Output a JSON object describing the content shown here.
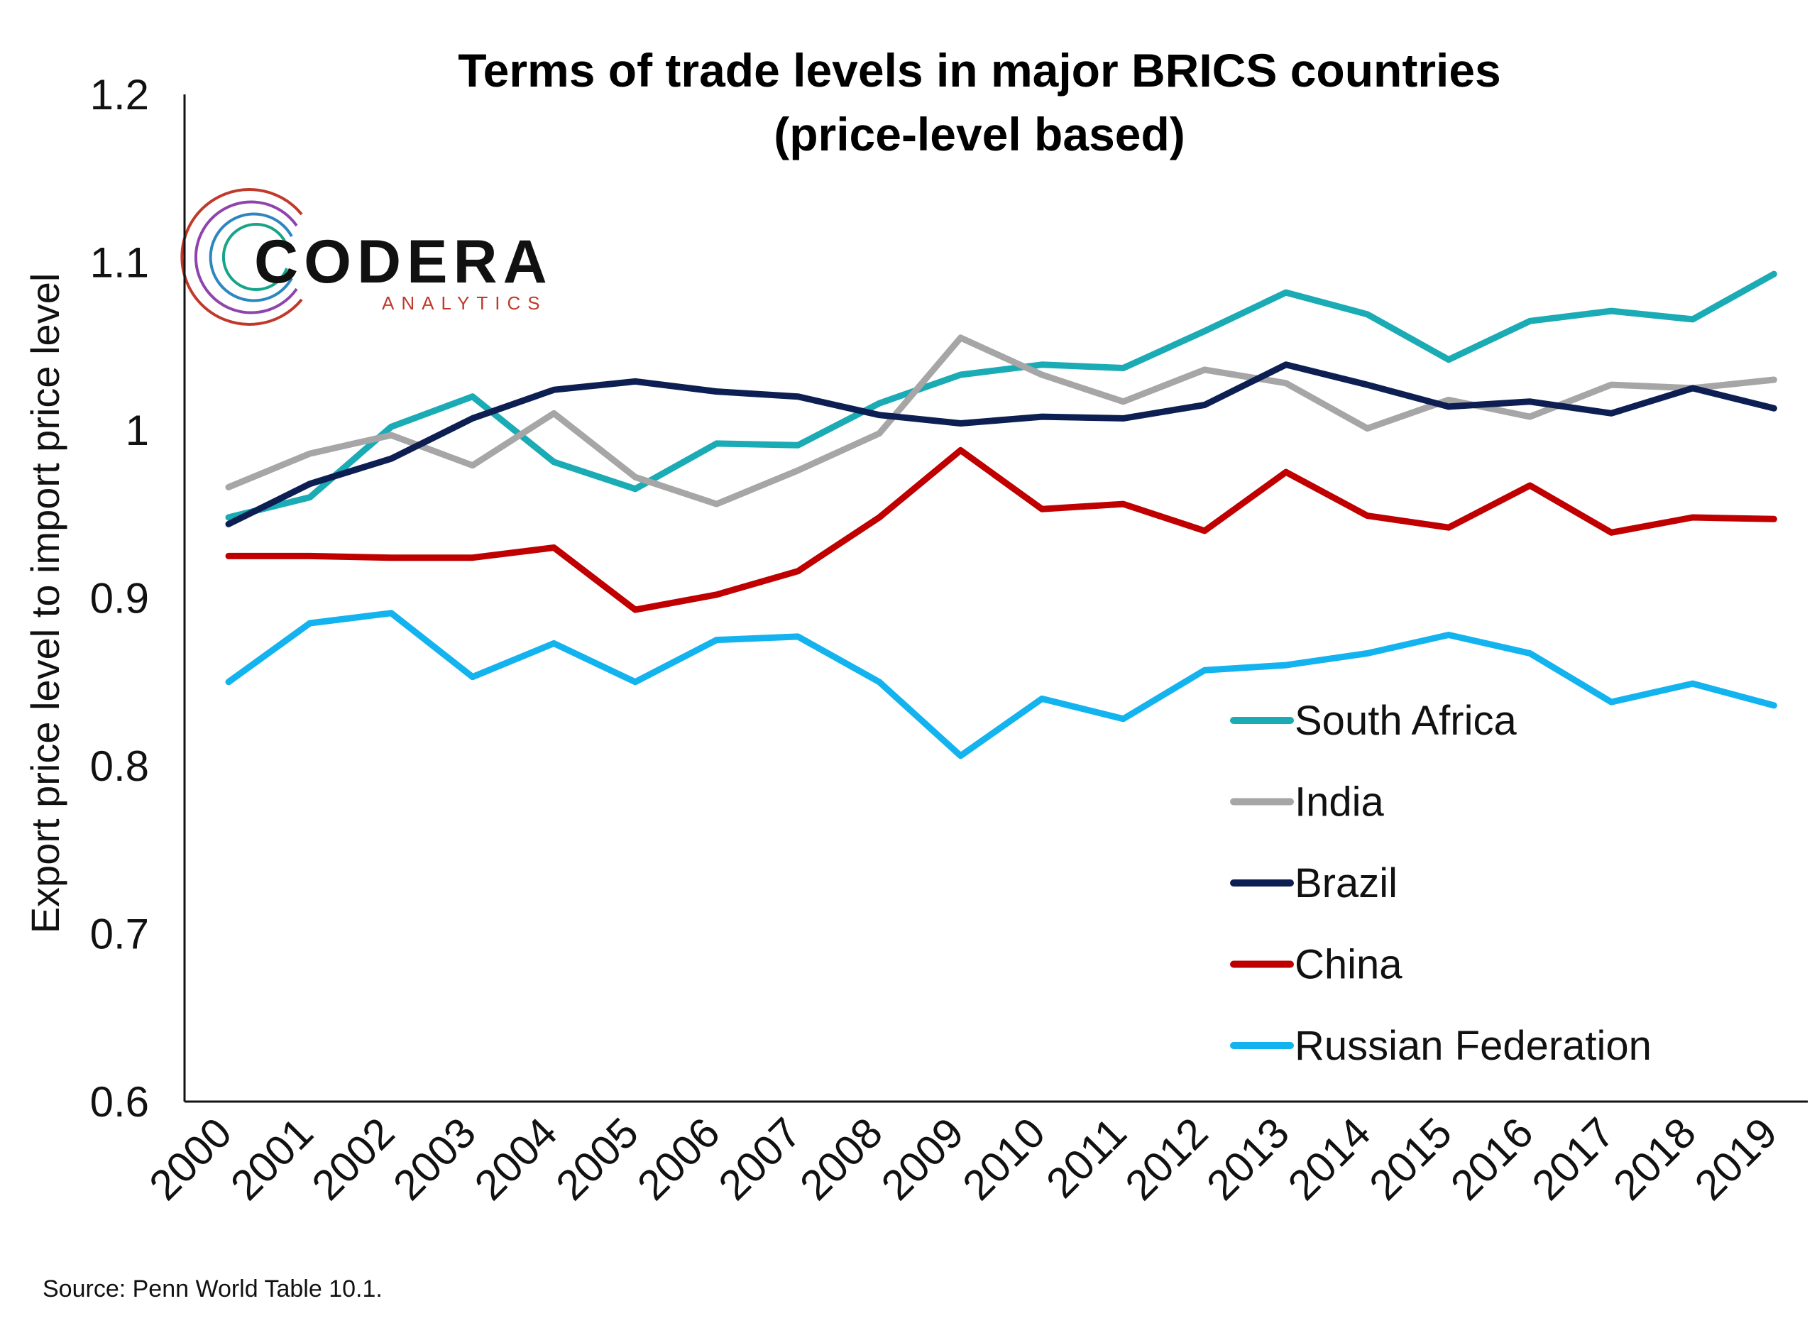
{
  "logo": {
    "main": "CODERA",
    "sub": "ANALYTICS"
  },
  "source": "Source: Penn World Table 10.1.",
  "chart_data": {
    "type": "line",
    "title": [
      "Terms of trade levels in major BRICS countries",
      "(price-level based)"
    ],
    "ylabel": "Export price level to import price level",
    "xlabel": "",
    "ylim": [
      0.6,
      1.2
    ],
    "yticks": [
      "0.6",
      "0.7",
      "0.8",
      "0.9",
      "1",
      "1.1",
      "1.2"
    ],
    "categories": [
      "2000",
      "2001",
      "2002",
      "2003",
      "2004",
      "2005",
      "2006",
      "2007",
      "2008",
      "2009",
      "2010",
      "2011",
      "2012",
      "2013",
      "2014",
      "2015",
      "2016",
      "2017",
      "2018",
      "2019"
    ],
    "grid": false,
    "legend_position": "lower-right",
    "series": [
      {
        "name": "South Africa",
        "color": "#1aabb5",
        "values": [
          0.948,
          0.96,
          1.002,
          1.02,
          0.981,
          0.965,
          0.992,
          0.991,
          1.016,
          1.033,
          1.039,
          1.037,
          1.059,
          1.082,
          1.069,
          1.042,
          1.065,
          1.071,
          1.066,
          1.093
        ]
      },
      {
        "name": "India",
        "color": "#a6a6a6",
        "values": [
          0.966,
          0.986,
          0.997,
          0.979,
          1.01,
          0.972,
          0.956,
          0.976,
          0.998,
          1.055,
          1.033,
          1.017,
          1.036,
          1.028,
          1.001,
          1.018,
          1.008,
          1.027,
          1.025,
          1.03
        ]
      },
      {
        "name": "Brazil",
        "color": "#0d1f52",
        "values": [
          0.944,
          0.968,
          0.983,
          1.007,
          1.024,
          1.029,
          1.023,
          1.02,
          1.009,
          1.004,
          1.008,
          1.007,
          1.015,
          1.039,
          1.027,
          1.014,
          1.017,
          1.01,
          1.025,
          1.013
        ]
      },
      {
        "name": "China",
        "color": "#c00000",
        "values": [
          0.925,
          0.925,
          0.924,
          0.924,
          0.93,
          0.893,
          0.902,
          0.916,
          0.948,
          0.988,
          0.953,
          0.956,
          0.94,
          0.975,
          0.949,
          0.942,
          0.967,
          0.939,
          0.948,
          0.947
        ]
      },
      {
        "name": "Russian Federation",
        "color": "#12b3ee",
        "values": [
          0.85,
          0.885,
          0.891,
          0.853,
          0.873,
          0.85,
          0.875,
          0.877,
          0.85,
          0.806,
          0.84,
          0.828,
          0.857,
          0.86,
          0.867,
          0.878,
          0.867,
          0.838,
          0.849,
          0.836
        ]
      }
    ]
  }
}
